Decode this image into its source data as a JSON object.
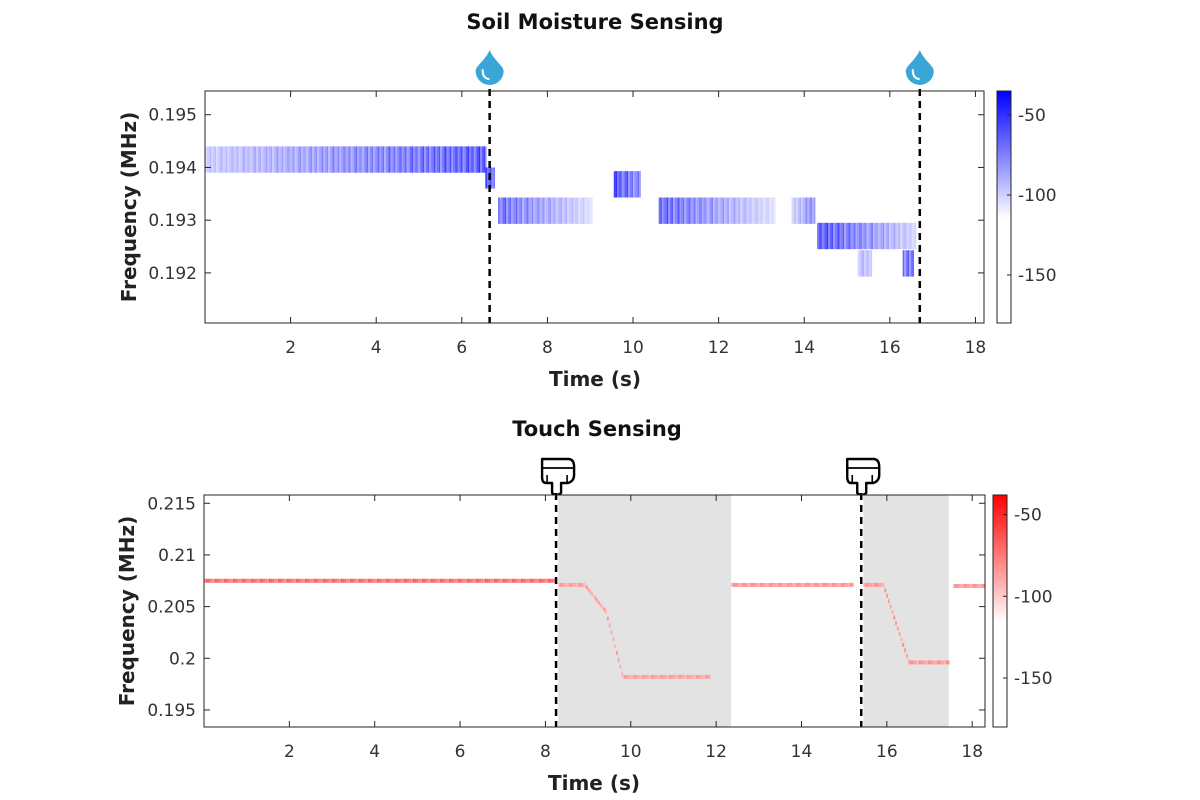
{
  "chart_data": [
    {
      "type": "heatmap",
      "title": "Soil Moisture Sensing",
      "xlabel": "Time (s)",
      "ylabel": "Frequency (MHz)",
      "xlim": [
        0,
        18.2
      ],
      "ylim": [
        0.19105,
        0.19545
      ],
      "xticks": [
        2,
        4,
        6,
        8,
        10,
        12,
        14,
        16,
        18
      ],
      "xtick_labels": [
        "2",
        "4",
        "6",
        "8",
        "10",
        "12",
        "14",
        "16",
        "18"
      ],
      "yticks": [
        0.192,
        0.193,
        0.194,
        0.195
      ],
      "ytick_labels": [
        "0.192",
        "0.193",
        "0.194",
        "0.195"
      ],
      "colormap": {
        "low_color": "#ffffff",
        "high_color": "#0000ff"
      },
      "colorbar": {
        "range": [
          -180,
          -35
        ],
        "ticks": [
          -50,
          -100,
          -150
        ],
        "tick_labels": [
          "-50",
          "-100",
          "-150"
        ]
      },
      "events": {
        "type": "water-drop",
        "times": [
          6.65,
          16.7
        ],
        "line_color": "#000000"
      },
      "segments": [
        {
          "t0": 0.0,
          "t1": 6.55,
          "f": 0.19415,
          "h": 0.0005,
          "i0": 0.25,
          "i1": 0.8
        },
        {
          "t0": 6.55,
          "t1": 6.75,
          "f": 0.1938,
          "h": 0.0004,
          "i0": 0.8,
          "i1": 0.8
        },
        {
          "t0": 6.85,
          "t1": 9.05,
          "f": 0.19318,
          "h": 0.0005,
          "i0": 0.7,
          "i1": 0.15
        },
        {
          "t0": 9.55,
          "t1": 10.15,
          "f": 0.19368,
          "h": 0.0005,
          "i0": 0.85,
          "i1": 0.55
        },
        {
          "t0": 10.6,
          "t1": 13.3,
          "f": 0.19318,
          "h": 0.0005,
          "i0": 0.75,
          "i1": 0.15
        },
        {
          "t0": 13.7,
          "t1": 14.25,
          "f": 0.19318,
          "h": 0.0005,
          "i0": 0.2,
          "i1": 0.6
        },
        {
          "t0": 14.3,
          "t1": 16.6,
          "f": 0.1927,
          "h": 0.0005,
          "i0": 0.85,
          "i1": 0.2
        },
        {
          "t0": 15.25,
          "t1": 15.55,
          "f": 0.19218,
          "h": 0.0005,
          "i0": 0.3,
          "i1": 0.3
        },
        {
          "t0": 16.3,
          "t1": 16.55,
          "f": 0.19218,
          "h": 0.0005,
          "i0": 0.6,
          "i1": 0.8
        }
      ]
    },
    {
      "type": "heatmap",
      "title": "Touch Sensing",
      "xlabel": "Time (s)",
      "ylabel": "Frequency (MHz)",
      "xlim": [
        0,
        18.3
      ],
      "ylim": [
        0.19335,
        0.2158
      ],
      "xticks": [
        2,
        4,
        6,
        8,
        10,
        12,
        14,
        16,
        18
      ],
      "xtick_labels": [
        "2",
        "4",
        "6",
        "8",
        "10",
        "12",
        "14",
        "16",
        "18"
      ],
      "yticks": [
        0.195,
        0.2,
        0.205,
        0.21,
        0.215
      ],
      "ytick_labels": [
        "0.195",
        "0.2",
        "0.205",
        "0.21",
        "0.215"
      ],
      "colormap": {
        "low_color": "#ffffff",
        "high_color": "#ff0000"
      },
      "colorbar": {
        "range": [
          -180,
          -38
        ],
        "ticks": [
          -50,
          -100,
          -150
        ],
        "tick_labels": [
          "-50",
          "-100",
          "-150"
        ]
      },
      "events": {
        "type": "touch-hand",
        "times": [
          8.25,
          15.4
        ],
        "line_color": "#000000"
      },
      "shaded_regions": [
        {
          "t0": 8.3,
          "t1": 12.35
        },
        {
          "t0": 15.45,
          "t1": 17.45
        }
      ],
      "traces": [
        {
          "t": [
            0,
            8.25
          ],
          "f": [
            0.2075,
            0.2075
          ],
          "i": 0.65
        },
        {
          "t": [
            8.3,
            8.9,
            9.4,
            9.8,
            11.85
          ],
          "f": [
            0.2071,
            0.2071,
            0.2045,
            0.1982,
            0.1982
          ],
          "i": 0.4
        },
        {
          "t": [
            12.35,
            15.2
          ],
          "f": [
            0.2071,
            0.2071
          ],
          "i": 0.45
        },
        {
          "t": [
            15.45,
            15.9,
            16.5,
            17.45
          ],
          "f": [
            0.2071,
            0.2071,
            0.1996,
            0.1996
          ],
          "i": 0.45
        },
        {
          "t": [
            17.55,
            18.3
          ],
          "f": [
            0.207,
            0.207
          ],
          "i": 0.45
        }
      ]
    }
  ]
}
